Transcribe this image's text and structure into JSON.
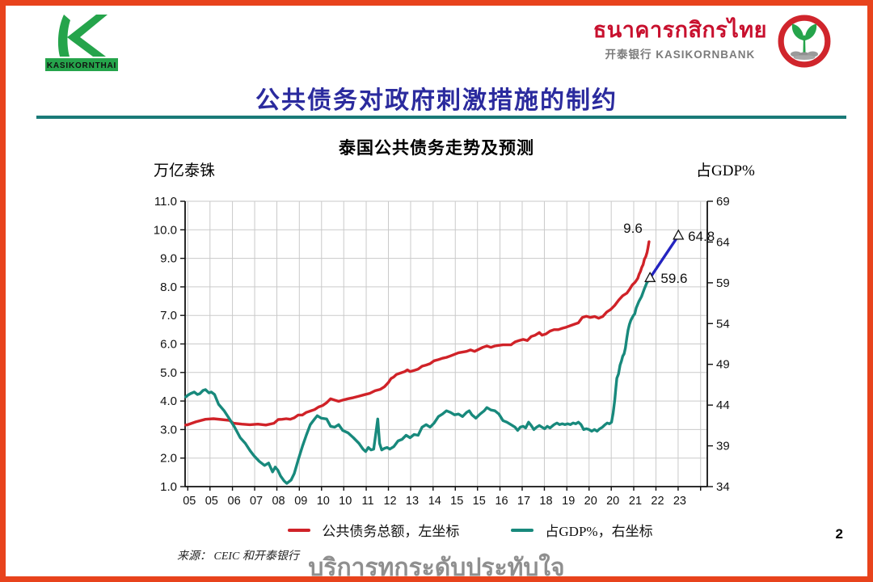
{
  "header": {
    "logo_left_text": "KASIKORNTHAI",
    "logo_right": {
      "thai_name": "ธนาคารกสิกรไทย",
      "cn_en_name": "开泰银行 KASIKORNBANK"
    }
  },
  "title": "公共债务对政府刺激措施的制约",
  "chart": {
    "source": "来源：  CEIC 和开泰银行"
  },
  "footer": {
    "slogan": "บริการทุกระดับประทับใจ",
    "page_number": "2"
  },
  "colors": {
    "border_orange": "#e8431c",
    "title_navy": "#2b2b9e",
    "rule_teal": "#1a7a78",
    "brand_green": "#25a44b",
    "brand_red": "#c8102e"
  },
  "chart_data": {
    "type": "line",
    "title": "泰国公共债务走势及预测",
    "grid_color": "#cacaca",
    "left_axis": {
      "label": "万亿泰铢",
      "min": 1,
      "max": 11,
      "step": 1,
      "tick_labels": [
        "11.0",
        "10.0",
        "9.0",
        "8.0",
        "7.0",
        "6.0",
        "5.0",
        "4.0",
        "3.0",
        "2.0",
        "1.0"
      ]
    },
    "right_axis": {
      "label": "占GDP%",
      "min": 34,
      "max": 69,
      "step": 5,
      "tick_labels": [
        "69",
        "64",
        "59",
        "54",
        "49",
        "44",
        "39",
        "34"
      ]
    },
    "x_axis": {
      "domain": [
        2004.9,
        2024.42
      ],
      "ticks": [
        {
          "p": 2005.0,
          "label": "05"
        },
        {
          "p": 2005.83,
          "label": "05"
        },
        {
          "p": 2006.67,
          "label": "06"
        },
        {
          "p": 2007.5,
          "label": "07"
        },
        {
          "p": 2008.33,
          "label": "08"
        },
        {
          "p": 2009.17,
          "label": "09"
        },
        {
          "p": 2010.0,
          "label": "10"
        },
        {
          "p": 2010.83,
          "label": "10"
        },
        {
          "p": 2011.67,
          "label": "11"
        },
        {
          "p": 2012.5,
          "label": "12"
        },
        {
          "p": 2013.33,
          "label": "13"
        },
        {
          "p": 2014.17,
          "label": "14"
        },
        {
          "p": 2015.0,
          "label": "15"
        },
        {
          "p": 2015.83,
          "label": "15"
        },
        {
          "p": 2016.67,
          "label": "16"
        },
        {
          "p": 2017.5,
          "label": "17"
        },
        {
          "p": 2018.33,
          "label": "18"
        },
        {
          "p": 2019.17,
          "label": "19"
        },
        {
          "p": 2020.0,
          "label": "20"
        },
        {
          "p": 2020.83,
          "label": "20"
        },
        {
          "p": 2021.67,
          "label": "21"
        },
        {
          "p": 2022.5,
          "label": "22"
        },
        {
          "p": 2023.33,
          "label": "23"
        },
        {
          "p": 2024.17,
          "label": ""
        }
      ]
    },
    "series": [
      {
        "name": "公共债务总额，左坐标",
        "axis": "left",
        "color": "#d02228",
        "points": [
          [
            2004.92,
            3.16
          ],
          [
            2005.0,
            3.17
          ],
          [
            2005.3,
            3.27
          ],
          [
            2005.66,
            3.36
          ],
          [
            2005.96,
            3.38
          ],
          [
            2006.26,
            3.35
          ],
          [
            2006.56,
            3.32
          ],
          [
            2006.71,
            3.22
          ],
          [
            2007.02,
            3.19
          ],
          [
            2007.32,
            3.17
          ],
          [
            2007.62,
            3.19
          ],
          [
            2007.92,
            3.16
          ],
          [
            2008.22,
            3.22
          ],
          [
            2008.38,
            3.35
          ],
          [
            2008.53,
            3.36
          ],
          [
            2008.68,
            3.38
          ],
          [
            2008.83,
            3.36
          ],
          [
            2008.98,
            3.41
          ],
          [
            2009.13,
            3.51
          ],
          [
            2009.28,
            3.51
          ],
          [
            2009.43,
            3.6
          ],
          [
            2009.58,
            3.65
          ],
          [
            2009.74,
            3.7
          ],
          [
            2009.89,
            3.79
          ],
          [
            2010.04,
            3.84
          ],
          [
            2010.19,
            3.94
          ],
          [
            2010.34,
            4.08
          ],
          [
            2010.49,
            4.03
          ],
          [
            2010.64,
            3.99
          ],
          [
            2010.79,
            4.03
          ],
          [
            2010.99,
            4.08
          ],
          [
            2011.19,
            4.12
          ],
          [
            2011.4,
            4.17
          ],
          [
            2011.6,
            4.22
          ],
          [
            2011.8,
            4.27
          ],
          [
            2012.0,
            4.36
          ],
          [
            2012.2,
            4.41
          ],
          [
            2012.35,
            4.5
          ],
          [
            2012.5,
            4.65
          ],
          [
            2012.6,
            4.79
          ],
          [
            2012.7,
            4.84
          ],
          [
            2012.8,
            4.93
          ],
          [
            2012.95,
            4.98
          ],
          [
            2013.11,
            5.03
          ],
          [
            2013.21,
            5.09
          ],
          [
            2013.31,
            5.03
          ],
          [
            2013.46,
            5.07
          ],
          [
            2013.61,
            5.12
          ],
          [
            2013.76,
            5.22
          ],
          [
            2013.91,
            5.26
          ],
          [
            2014.06,
            5.31
          ],
          [
            2014.21,
            5.41
          ],
          [
            2014.37,
            5.45
          ],
          [
            2014.52,
            5.5
          ],
          [
            2014.67,
            5.53
          ],
          [
            2014.82,
            5.58
          ],
          [
            2015.12,
            5.69
          ],
          [
            2015.42,
            5.74
          ],
          [
            2015.57,
            5.79
          ],
          [
            2015.72,
            5.74
          ],
          [
            2016.03,
            5.88
          ],
          [
            2016.18,
            5.93
          ],
          [
            2016.33,
            5.88
          ],
          [
            2016.48,
            5.93
          ],
          [
            2016.78,
            5.97
          ],
          [
            2017.08,
            5.97
          ],
          [
            2017.23,
            6.07
          ],
          [
            2017.39,
            6.12
          ],
          [
            2017.54,
            6.16
          ],
          [
            2017.69,
            6.12
          ],
          [
            2017.84,
            6.26
          ],
          [
            2017.99,
            6.31
          ],
          [
            2018.14,
            6.4
          ],
          [
            2018.24,
            6.31
          ],
          [
            2018.39,
            6.35
          ],
          [
            2018.54,
            6.45
          ],
          [
            2018.69,
            6.5
          ],
          [
            2018.85,
            6.5
          ],
          [
            2019.0,
            6.55
          ],
          [
            2019.15,
            6.59
          ],
          [
            2019.3,
            6.64
          ],
          [
            2019.45,
            6.69
          ],
          [
            2019.6,
            6.74
          ],
          [
            2019.75,
            6.93
          ],
          [
            2019.9,
            6.97
          ],
          [
            2020.05,
            6.93
          ],
          [
            2020.21,
            6.96
          ],
          [
            2020.36,
            6.9
          ],
          [
            2020.51,
            6.96
          ],
          [
            2020.66,
            7.12
          ],
          [
            2020.81,
            7.21
          ],
          [
            2020.96,
            7.35
          ],
          [
            2021.11,
            7.54
          ],
          [
            2021.26,
            7.69
          ],
          [
            2021.41,
            7.78
          ],
          [
            2021.52,
            7.92
          ],
          [
            2021.62,
            8.07
          ],
          [
            2021.72,
            8.16
          ],
          [
            2021.82,
            8.3
          ],
          [
            2021.87,
            8.44
          ],
          [
            2021.92,
            8.54
          ],
          [
            2021.97,
            8.68
          ],
          [
            2022.02,
            8.78
          ],
          [
            2022.07,
            8.97
          ],
          [
            2022.12,
            9.06
          ],
          [
            2022.17,
            9.21
          ],
          [
            2022.2,
            9.35
          ],
          [
            2022.24,
            9.58
          ]
        ]
      },
      {
        "name": "占GDP%，右坐标",
        "axis": "right",
        "color": "#18897c",
        "points": [
          [
            2004.92,
            45.0
          ],
          [
            2005.0,
            45.2
          ],
          [
            2005.1,
            45.4
          ],
          [
            2005.24,
            45.6
          ],
          [
            2005.36,
            45.3
          ],
          [
            2005.45,
            45.4
          ],
          [
            2005.57,
            45.8
          ],
          [
            2005.66,
            45.9
          ],
          [
            2005.79,
            45.5
          ],
          [
            2005.88,
            45.6
          ],
          [
            2006.0,
            45.3
          ],
          [
            2006.15,
            44.1
          ],
          [
            2006.36,
            43.3
          ],
          [
            2006.56,
            42.3
          ],
          [
            2006.75,
            41.3
          ],
          [
            2006.96,
            40.0
          ],
          [
            2007.15,
            39.3
          ],
          [
            2007.33,
            38.4
          ],
          [
            2007.47,
            37.8
          ],
          [
            2007.67,
            37.1
          ],
          [
            2007.87,
            36.6
          ],
          [
            2008.02,
            36.9
          ],
          [
            2008.17,
            35.8
          ],
          [
            2008.27,
            36.4
          ],
          [
            2008.37,
            36.0
          ],
          [
            2008.47,
            35.3
          ],
          [
            2008.6,
            34.7
          ],
          [
            2008.7,
            34.4
          ],
          [
            2008.86,
            34.8
          ],
          [
            2008.98,
            35.6
          ],
          [
            2009.13,
            37.3
          ],
          [
            2009.28,
            38.9
          ],
          [
            2009.43,
            40.3
          ],
          [
            2009.58,
            41.6
          ],
          [
            2009.74,
            42.3
          ],
          [
            2009.84,
            42.7
          ],
          [
            2009.99,
            42.4
          ],
          [
            2010.19,
            42.3
          ],
          [
            2010.34,
            41.4
          ],
          [
            2010.49,
            41.3
          ],
          [
            2010.64,
            41.6
          ],
          [
            2010.79,
            40.9
          ],
          [
            2010.99,
            40.6
          ],
          [
            2011.19,
            40.0
          ],
          [
            2011.4,
            39.3
          ],
          [
            2011.55,
            38.6
          ],
          [
            2011.65,
            38.3
          ],
          [
            2011.75,
            38.8
          ],
          [
            2011.85,
            38.5
          ],
          [
            2011.95,
            38.6
          ],
          [
            2012.05,
            41.0
          ],
          [
            2012.1,
            42.3
          ],
          [
            2012.17,
            39.3
          ],
          [
            2012.25,
            38.5
          ],
          [
            2012.35,
            38.7
          ],
          [
            2012.45,
            38.8
          ],
          [
            2012.55,
            38.6
          ],
          [
            2012.7,
            38.9
          ],
          [
            2012.86,
            39.6
          ],
          [
            2013.01,
            39.8
          ],
          [
            2013.16,
            40.3
          ],
          [
            2013.31,
            40.0
          ],
          [
            2013.46,
            40.4
          ],
          [
            2013.61,
            40.3
          ],
          [
            2013.76,
            41.3
          ],
          [
            2013.91,
            41.6
          ],
          [
            2014.06,
            41.3
          ],
          [
            2014.21,
            41.8
          ],
          [
            2014.37,
            42.6
          ],
          [
            2014.52,
            42.9
          ],
          [
            2014.67,
            43.3
          ],
          [
            2014.82,
            43.1
          ],
          [
            2014.97,
            42.8
          ],
          [
            2015.12,
            42.9
          ],
          [
            2015.27,
            42.6
          ],
          [
            2015.42,
            43.1
          ],
          [
            2015.52,
            43.3
          ],
          [
            2015.62,
            42.8
          ],
          [
            2015.77,
            42.4
          ],
          [
            2015.93,
            42.9
          ],
          [
            2016.08,
            43.3
          ],
          [
            2016.18,
            43.7
          ],
          [
            2016.33,
            43.4
          ],
          [
            2016.48,
            43.3
          ],
          [
            2016.63,
            42.9
          ],
          [
            2016.78,
            42.1
          ],
          [
            2016.93,
            41.9
          ],
          [
            2017.08,
            41.6
          ],
          [
            2017.23,
            41.3
          ],
          [
            2017.33,
            40.9
          ],
          [
            2017.43,
            41.3
          ],
          [
            2017.54,
            41.4
          ],
          [
            2017.63,
            41.2
          ],
          [
            2017.74,
            41.9
          ],
          [
            2017.84,
            41.5
          ],
          [
            2017.94,
            41.0
          ],
          [
            2018.04,
            41.3
          ],
          [
            2018.14,
            41.5
          ],
          [
            2018.24,
            41.3
          ],
          [
            2018.34,
            41.1
          ],
          [
            2018.44,
            41.4
          ],
          [
            2018.54,
            41.2
          ],
          [
            2018.69,
            41.6
          ],
          [
            2018.8,
            41.8
          ],
          [
            2018.9,
            41.6
          ],
          [
            2019.0,
            41.7
          ],
          [
            2019.1,
            41.6
          ],
          [
            2019.2,
            41.7
          ],
          [
            2019.3,
            41.6
          ],
          [
            2019.4,
            41.8
          ],
          [
            2019.5,
            41.7
          ],
          [
            2019.6,
            41.9
          ],
          [
            2019.7,
            41.6
          ],
          [
            2019.8,
            41.0
          ],
          [
            2019.9,
            41.1
          ],
          [
            2020.0,
            41.0
          ],
          [
            2020.1,
            40.8
          ],
          [
            2020.2,
            41.0
          ],
          [
            2020.3,
            40.8
          ],
          [
            2020.4,
            41.1
          ],
          [
            2020.5,
            41.3
          ],
          [
            2020.6,
            41.6
          ],
          [
            2020.68,
            41.8
          ],
          [
            2020.76,
            41.7
          ],
          [
            2020.84,
            41.9
          ],
          [
            2020.9,
            43.0
          ],
          [
            2020.96,
            44.6
          ],
          [
            2021.0,
            46.0
          ],
          [
            2021.04,
            47.3
          ],
          [
            2021.1,
            47.8
          ],
          [
            2021.16,
            48.9
          ],
          [
            2021.21,
            49.4
          ],
          [
            2021.26,
            50.0
          ],
          [
            2021.31,
            50.3
          ],
          [
            2021.36,
            51.0
          ],
          [
            2021.41,
            52.2
          ],
          [
            2021.46,
            53.2
          ],
          [
            2021.51,
            53.9
          ],
          [
            2021.56,
            54.4
          ],
          [
            2021.61,
            54.7
          ],
          [
            2021.66,
            55.0
          ],
          [
            2021.71,
            55.2
          ],
          [
            2021.76,
            55.9
          ],
          [
            2021.86,
            56.7
          ],
          [
            2021.96,
            57.3
          ],
          [
            2022.06,
            58.2
          ],
          [
            2022.16,
            59.0
          ],
          [
            2022.28,
            59.6
          ]
        ]
      },
      {
        "id": "gdp-forecast",
        "axis": "right",
        "color": "#2424c0",
        "markers": "triangle",
        "points": [
          [
            2022.28,
            59.6
          ],
          [
            2023.34,
            64.8
          ]
        ]
      }
    ],
    "annotations": [
      {
        "text": "9.6",
        "axis": "left",
        "x": 2021.64,
        "y": 10.06
      },
      {
        "text": "59.6",
        "axis": "right",
        "x": 2023.18,
        "y": 59.58
      },
      {
        "text": "64.8",
        "axis": "right",
        "x": 2024.2,
        "y": 64.74
      }
    ]
  }
}
